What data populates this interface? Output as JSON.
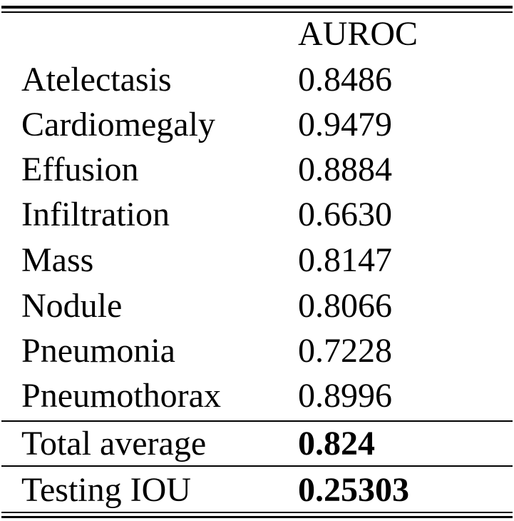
{
  "table": {
    "header": {
      "col1": "",
      "col2": "AUROC"
    },
    "rows": [
      {
        "label": "Atelectasis",
        "value": "0.8486"
      },
      {
        "label": "Cardiomegaly",
        "value": "0.9479"
      },
      {
        "label": "Effusion",
        "value": "0.8884"
      },
      {
        "label": "Infiltration",
        "value": "0.6630"
      },
      {
        "label": "Mass",
        "value": "0.8147"
      },
      {
        "label": "Nodule",
        "value": "0.8066"
      },
      {
        "label": "Pneumonia",
        "value": "0.7228"
      },
      {
        "label": "Pneumothorax",
        "value": "0.8996"
      }
    ],
    "summary": [
      {
        "label": "Total average",
        "value": "0.824"
      },
      {
        "label": "Testing IOU",
        "value": "0.25303"
      }
    ]
  }
}
